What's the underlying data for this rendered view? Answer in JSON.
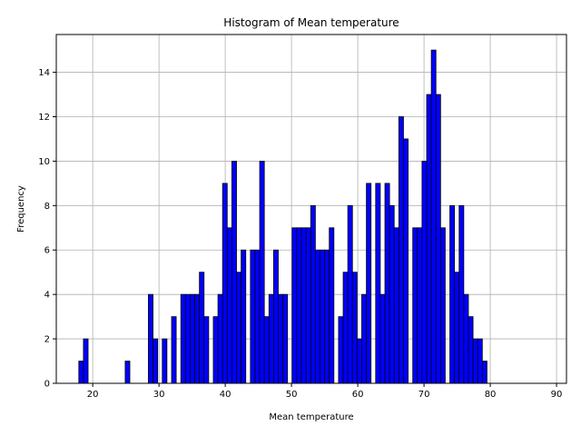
{
  "chart_data": {
    "type": "bar",
    "title": "Histogram of Mean temperature",
    "xlabel": "Mean temperature",
    "ylabel": "Frequency",
    "xlim": [
      14.5,
      91.5
    ],
    "ylim": [
      0,
      15.7
    ],
    "xticks": [
      20,
      30,
      40,
      50,
      60,
      70,
      80,
      90
    ],
    "yticks": [
      0,
      2,
      4,
      6,
      8,
      10,
      12,
      14
    ],
    "grid": true,
    "bar_color": "#0000ff",
    "edge_color": "#000000",
    "bin_start": 17.9,
    "bin_width": 0.7,
    "values": [
      1,
      2,
      0,
      0,
      0,
      0,
      0,
      0,
      0,
      0,
      1,
      0,
      0,
      0,
      0,
      4,
      2,
      0,
      2,
      0,
      3,
      0,
      4,
      4,
      4,
      4,
      5,
      3,
      0,
      3,
      4,
      9,
      7,
      10,
      5,
      6,
      0,
      6,
      6,
      10,
      3,
      4,
      6,
      4,
      4,
      0,
      7,
      7,
      7,
      7,
      8,
      6,
      6,
      6,
      7,
      0,
      3,
      5,
      8,
      5,
      2,
      4,
      9,
      0,
      9,
      4,
      9,
      8,
      7,
      12,
      11,
      0,
      7,
      7,
      10,
      13,
      15,
      13,
      7,
      0,
      8,
      5,
      8,
      4,
      3,
      2,
      2,
      1
    ]
  }
}
